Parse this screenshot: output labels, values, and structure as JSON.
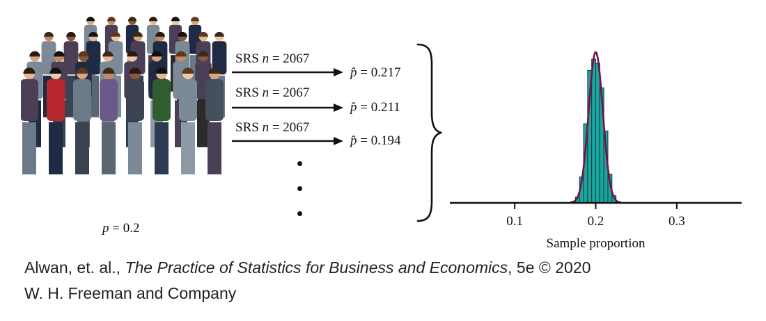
{
  "population": {
    "label_var": "p",
    "label_eq": "= 0.2"
  },
  "samples": [
    {
      "srs": "SRS",
      "n_var": "n",
      "n_eq": "= 2067",
      "phat_eq": "= 0.217"
    },
    {
      "srs": "SRS",
      "n_var": "n",
      "n_eq": "= 2067",
      "phat_eq": "= 0.211"
    },
    {
      "srs": "SRS",
      "n_var": "n",
      "n_eq": "= 2067",
      "phat_eq": "= 0.194"
    }
  ],
  "phat_symbol": "p̂",
  "chart_data": {
    "type": "bar",
    "xlabel": "Sample proportion",
    "xticks": [
      "0.1",
      "0.2",
      "0.3"
    ],
    "xtick_values": [
      0.1,
      0.2,
      0.3
    ],
    "xlim": [
      0.02,
      0.38
    ],
    "bin_width": 0.005,
    "bin_centers": [
      0.1725,
      0.1775,
      0.1825,
      0.1875,
      0.1925,
      0.1975,
      0.2025,
      0.2075,
      0.2125,
      0.2175,
      0.2225,
      0.2275
    ],
    "values": [
      0.01,
      0.04,
      0.18,
      0.55,
      0.92,
      1.0,
      0.97,
      0.8,
      0.5,
      0.2,
      0.05,
      0.01
    ],
    "curve": {
      "type": "normal",
      "mean": 0.2,
      "sd": 0.0088
    },
    "colors": {
      "bars": "#1aa6a0",
      "bar_edge": "#0b3b3a",
      "curve": "#7a1047",
      "axis": "#111111"
    }
  },
  "credit": {
    "line1_authors": "Alwan, et. al.,",
    "line1_title": "The Practice of Statistics for Business and Economics",
    "line1_rest": ", 5e © 2020",
    "line2": "W. H. Freeman and Company"
  }
}
